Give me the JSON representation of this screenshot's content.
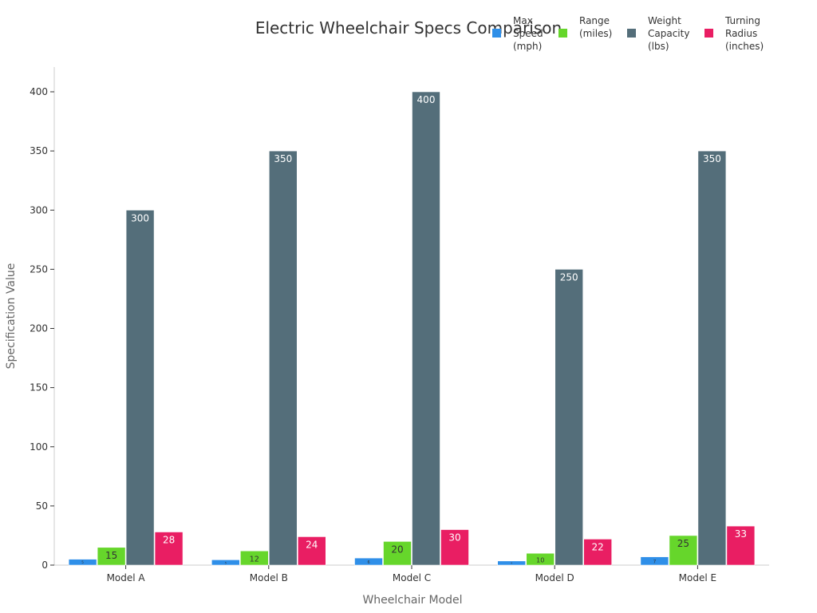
{
  "chart_data": {
    "type": "bar",
    "title": "Electric Wheelchair Specs Comparison",
    "xlabel": "Wheelchair Model",
    "ylabel": "Specification Value",
    "ylim": [
      0,
      420
    ],
    "yticks": [
      0,
      50,
      100,
      150,
      200,
      250,
      300,
      350,
      400
    ],
    "grid": false,
    "legend_position": "top-right",
    "categories": [
      "Model A",
      "Model B",
      "Model C",
      "Model D",
      "Model E"
    ],
    "series": [
      {
        "name": "Max\nSpeed\n(mph)",
        "color": "#2f8fe8",
        "values": [
          5,
          4.5,
          6,
          3.5,
          7
        ],
        "label_color": "#333333"
      },
      {
        "name": "Range\n(miles)",
        "color": "#66d62b",
        "values": [
          15,
          12,
          20,
          10,
          25
        ],
        "label_color": "#333333"
      },
      {
        "name": "Weight\nCapacity\n(lbs)",
        "color": "#546e7a",
        "values": [
          300,
          350,
          400,
          250,
          350
        ],
        "label_color": "#ffffff"
      },
      {
        "name": "Turning\nRadius\n(inches)",
        "color": "#e91e63",
        "values": [
          28,
          24,
          30,
          22,
          33
        ],
        "label_color": "#ffffff"
      }
    ]
  }
}
